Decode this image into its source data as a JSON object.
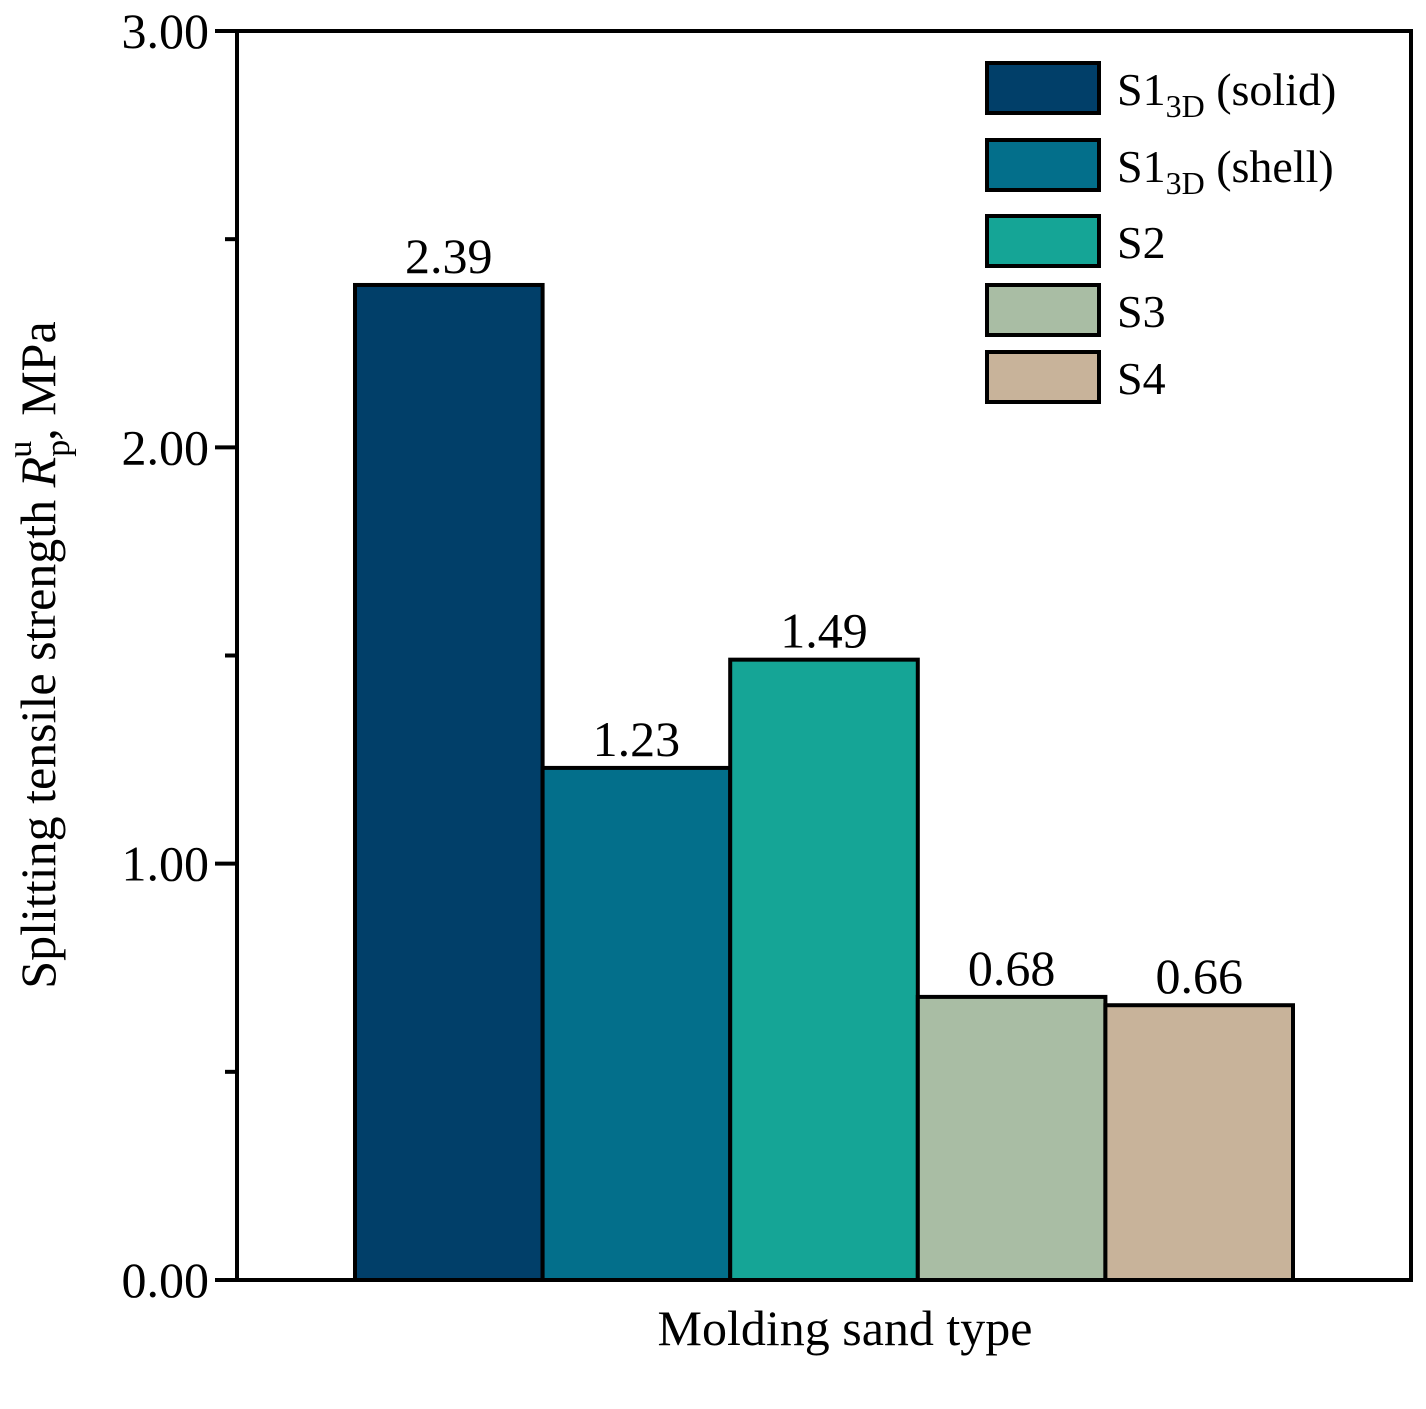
{
  "chart_data": {
    "type": "bar",
    "title": "",
    "xlabel": "Molding sand type",
    "ylabel": {
      "prefix": "Splitting tensile strength ",
      "symbol": "R",
      "subscript": "p",
      "superscript": "u",
      "suffix": ", MPa"
    },
    "ylim": [
      0,
      3
    ],
    "yticks": [
      "0.00",
      "1.00",
      "2.00",
      "3.00"
    ],
    "y_minor_ticks": [
      0.5,
      1.5,
      2.5
    ],
    "legend_position": "top-right",
    "series": [
      {
        "name": "S1",
        "sub": "3D",
        "suffix": " (solid)",
        "value": 2.39,
        "label": "2.39",
        "color": "#013f69"
      },
      {
        "name": "S1",
        "sub": "3D",
        "suffix": " (shell)",
        "value": 1.23,
        "label": "1.23",
        "color": "#036f8b"
      },
      {
        "name": "S2",
        "sub": "",
        "suffix": "",
        "value": 1.49,
        "label": "1.49",
        "color": "#15a596"
      },
      {
        "name": "S3",
        "sub": "",
        "suffix": "",
        "value": 0.68,
        "label": "0.68",
        "color": "#a9bda4"
      },
      {
        "name": "S4",
        "sub": "",
        "suffix": "",
        "value": 0.66,
        "label": "0.66",
        "color": "#c8b39a"
      }
    ]
  }
}
